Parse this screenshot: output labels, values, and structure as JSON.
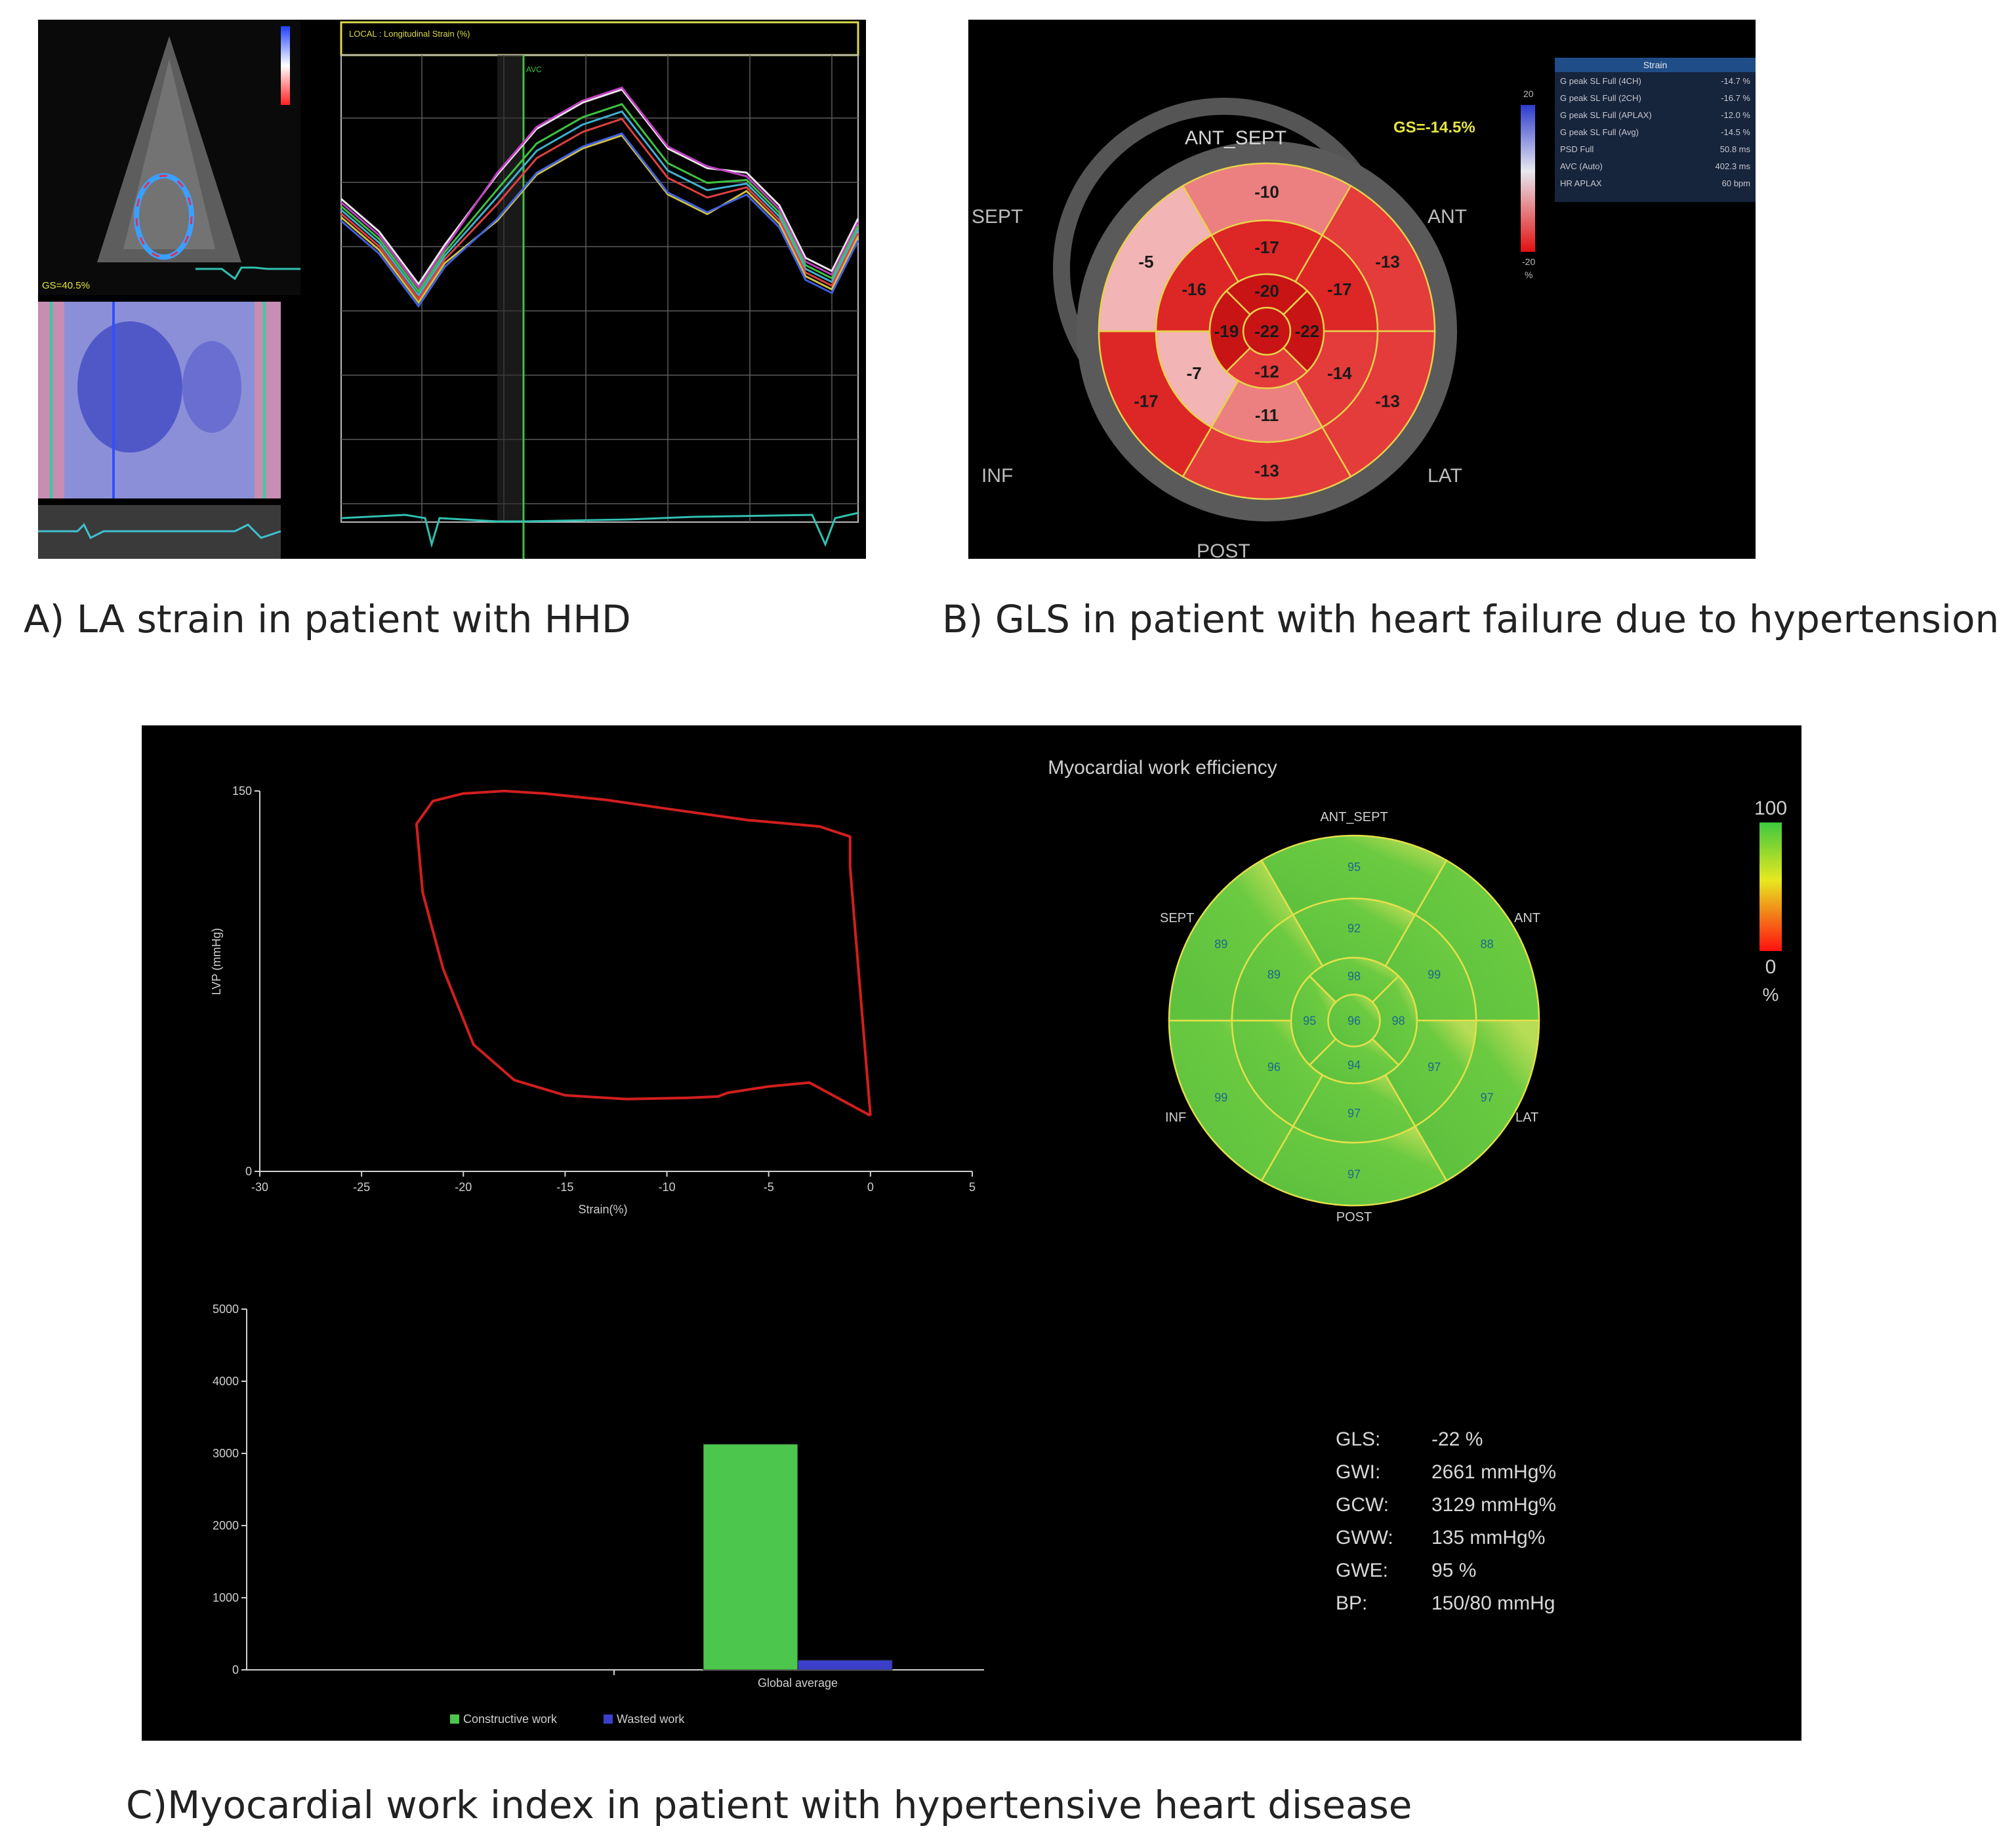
{
  "panel_a": {
    "caption": "A)   LA strain in patient with HHD",
    "header": "LOCAL : Longitudinal Strain (%)",
    "avc_marker": "AVC",
    "strain_badge": "GS=40.5%",
    "series_colors": [
      "#e8e8e8",
      "#c040c0",
      "#40c040",
      "#40b0d0",
      "#e04040",
      "#d0c040",
      "#4060e0"
    ]
  },
  "panel_b": {
    "caption": "B) GLS in patient with heart failure due to hypertension",
    "gs_label": "GS=-14.5%",
    "orientation": {
      "ant_sept": "ANT_SEPT",
      "sept": "SEPT",
      "ant": "ANT",
      "inf": "INF",
      "lat": "LAT",
      "post": "POST"
    },
    "colorbar": {
      "top": "20",
      "bottom": "-20",
      "unit": "%"
    },
    "segments": {
      "basal": [
        "-10",
        "-13",
        "-13",
        "-13",
        "-17",
        "-5"
      ],
      "mid": [
        "-17",
        "-17",
        "-14",
        "-11",
        "-7",
        "-16"
      ],
      "apical": [
        "-20",
        "-22",
        "-12",
        "-19"
      ],
      "apex": "-22"
    },
    "table": {
      "title": "Strain",
      "rows": [
        {
          "label": "G peak SL Full (4CH)",
          "value": "-14.7 %"
        },
        {
          "label": "G peak SL Full (2CH)",
          "value": "-16.7 %"
        },
        {
          "label": "G peak SL Full (APLAX)",
          "value": "-12.0 %"
        },
        {
          "label": "G peak SL Full (Avg)",
          "value": "-14.5 %"
        },
        {
          "label": "PSD Full",
          "value": "50.8 ms"
        },
        {
          "label": "AVC (Auto)",
          "value": "402.3 ms"
        },
        {
          "label": "HR APLAX",
          "value": "60 bpm"
        }
      ]
    }
  },
  "panel_c": {
    "caption": "C)Myocardial work index in patient with hypertensive heart disease",
    "title": "Myocardial work efficiency",
    "orientation": {
      "ant_sept": "ANT_SEPT",
      "sept": "SEPT",
      "ant": "ANT",
      "inf": "INF",
      "lat": "LAT",
      "post": "POST"
    },
    "colorbar": {
      "top": "100",
      "bottom": "0",
      "unit": "%"
    },
    "segments": {
      "basal": [
        "95",
        "88",
        "97",
        "97",
        "99",
        "89"
      ],
      "mid": [
        "92",
        "99",
        "97",
        "97",
        "96",
        "89"
      ],
      "apical": [
        "98",
        "98",
        "94",
        "95"
      ],
      "apex": "96"
    },
    "stats": [
      {
        "label": "GLS:",
        "value": "-22 %"
      },
      {
        "label": "GWI:",
        "value": "2661 mmHg%"
      },
      {
        "label": "GCW:",
        "value": "3129 mmHg%"
      },
      {
        "label": "GWW:",
        "value": "135 mmHg%"
      },
      {
        "label": "GWE:",
        "value": "95 %"
      },
      {
        "label": "BP:",
        "value": "150/80 mmHg"
      }
    ],
    "legend": {
      "constructive": "Constructive work",
      "wasted": "Wasted work"
    }
  },
  "chart_data": [
    {
      "type": "line",
      "title": "",
      "xlabel": "Strain(%)",
      "ylabel": "LVP (mmHg)",
      "xlim": [
        -30,
        5
      ],
      "ylim": [
        0,
        150
      ],
      "x_ticks": [
        "-30",
        "-25",
        "-20",
        "-15",
        "-10",
        "-5",
        "0",
        "5"
      ],
      "y_ticks": [
        "0",
        "150"
      ],
      "series": [
        {
          "x": [
            0,
            -0.8,
            -1.0,
            -1.0,
            -2.5,
            -6,
            -10,
            -13,
            -16,
            -18,
            -20,
            -21.5,
            -22.3,
            -22,
            -21,
            -19.5,
            -17.5,
            -15,
            -12,
            -9,
            -7.5,
            -7,
            -5,
            -3,
            0
          ],
          "y": [
            22,
            100,
            120,
            132,
            136,
            138.5,
            143,
            146.5,
            149,
            150,
            149,
            146,
            137,
            110,
            80,
            50,
            36,
            30,
            28.5,
            29,
            29.5,
            31,
            33.5,
            35,
            22
          ]
        }
      ]
    },
    {
      "type": "bar",
      "title": "",
      "categories": [
        "Global average"
      ],
      "ylim": [
        0,
        5000
      ],
      "y_ticks": [
        "0",
        "1000",
        "2000",
        "3000",
        "4000",
        "5000"
      ],
      "series": [
        {
          "name": "Constructive work",
          "values": [
            3129
          ],
          "color": "#4cc64c"
        },
        {
          "name": "Wasted work",
          "values": [
            135
          ],
          "color": "#3b3fc9"
        }
      ]
    }
  ]
}
